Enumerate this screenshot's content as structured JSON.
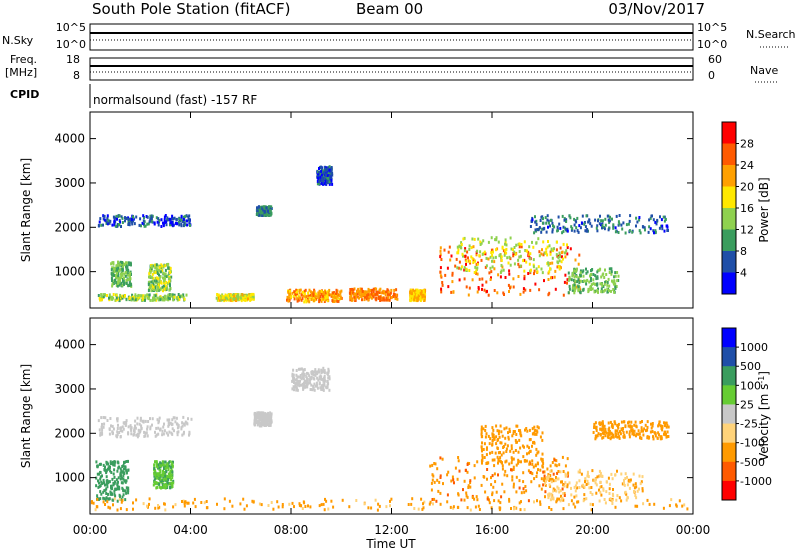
{
  "header": {
    "station": "South Pole Station (fitACF)",
    "beam": "Beam 00",
    "date": "03/Nov/2017"
  },
  "sky_panel": {
    "left_label": "N.Sky",
    "right_label": "N.Search",
    "left_ticks": [
      "10^5",
      "10^0"
    ],
    "right_ticks": [
      "10^5",
      "10^0"
    ]
  },
  "freq_panel": {
    "left_label_1": "Freq.",
    "left_label_2": "[MHz]",
    "left_ticks": [
      "18",
      "8"
    ],
    "right_label": "Nave",
    "right_ticks": [
      "60",
      "0"
    ]
  },
  "cpid": {
    "label": "CPID",
    "mode": "normalsound (fast) -157 RF"
  },
  "x_axis": {
    "label": "Time UT",
    "ticks": [
      "00:00",
      "04:00",
      "08:00",
      "12:00",
      "16:00",
      "20:00",
      "00:00"
    ]
  },
  "colors": {
    "power_scale": [
      "#0000ff",
      "#1f4fa8",
      "#3a9d5e",
      "#8fd14f",
      "#ffe800",
      "#ffa000",
      "#ff5a00",
      "#ff0000"
    ],
    "velocity_scale": [
      "#ff0000",
      "#ff5a00",
      "#ff9a00",
      "#ffd37a",
      "#c8c8c8",
      "#66cc33",
      "#3a9d5e",
      "#1f4fa8",
      "#0000ff"
    ]
  },
  "chart_data": [
    {
      "type": "heatmap",
      "name": "power",
      "xlabel": "Time UT",
      "ylabel": "Slant Range [km]",
      "ylim": [
        180,
        4600
      ],
      "xlim": [
        0,
        24
      ],
      "y_ticks": [
        1000,
        2000,
        3000,
        4000
      ],
      "colorbar": {
        "label": "Power [dB]",
        "ticks": [
          4,
          8,
          12,
          16,
          20,
          24,
          28
        ]
      },
      "regions": [
        {
          "t": [
            0.3,
            4.0
          ],
          "r": [
            2050,
            2300
          ],
          "v": 6
        },
        {
          "t": [
            0.8,
            1.6
          ],
          "r": [
            700,
            1250
          ],
          "v": 12
        },
        {
          "t": [
            2.3,
            3.2
          ],
          "r": [
            600,
            1200
          ],
          "v": 14
        },
        {
          "t": [
            0.3,
            3.8
          ],
          "r": [
            380,
            520
          ],
          "v": 14
        },
        {
          "t": [
            5.0,
            6.5
          ],
          "r": [
            380,
            520
          ],
          "v": 18
        },
        {
          "t": [
            6.6,
            7.2
          ],
          "r": [
            2300,
            2500
          ],
          "v": 8
        },
        {
          "t": [
            7.8,
            10.0
          ],
          "r": [
            350,
            620
          ],
          "v": 22
        },
        {
          "t": [
            9.0,
            9.6
          ],
          "r": [
            3000,
            3400
          ],
          "v": 6
        },
        {
          "t": [
            10.3,
            12.2
          ],
          "r": [
            380,
            650
          ],
          "v": 24
        },
        {
          "t": [
            12.7,
            13.3
          ],
          "r": [
            380,
            620
          ],
          "v": 20
        },
        {
          "t": [
            13.8,
            19.5
          ],
          "r": [
            500,
            1600
          ],
          "v": 26
        },
        {
          "t": [
            14.5,
            19.0
          ],
          "r": [
            1000,
            1800
          ],
          "v": 16
        },
        {
          "t": [
            17.5,
            23.0
          ],
          "r": [
            1900,
            2300
          ],
          "v": 7
        },
        {
          "t": [
            19.0,
            21.0
          ],
          "r": [
            550,
            1100
          ],
          "v": 12
        }
      ]
    },
    {
      "type": "heatmap",
      "name": "velocity",
      "xlabel": "Time UT",
      "ylabel": "Slant Range [km]",
      "ylim": [
        180,
        4600
      ],
      "xlim": [
        0,
        24
      ],
      "y_ticks": [
        1000,
        2000,
        3000,
        4000
      ],
      "colorbar": {
        "label": "Velocity [m s^-1]",
        "ticks": [
          1000,
          500,
          100,
          25,
          -25,
          -100,
          -500,
          -1000
        ]
      },
      "regions": [
        {
          "t": [
            0.3,
            4.0
          ],
          "r": [
            1950,
            2400
          ],
          "v": 0
        },
        {
          "t": [
            0.2,
            1.5
          ],
          "r": [
            500,
            1400
          ],
          "v": 200
        },
        {
          "t": [
            2.5,
            3.3
          ],
          "r": [
            800,
            1400
          ],
          "v": 80
        },
        {
          "t": [
            6.5,
            7.2
          ],
          "r": [
            2200,
            2500
          ],
          "v": 0
        },
        {
          "t": [
            8.0,
            9.5
          ],
          "r": [
            3000,
            3500
          ],
          "v": 0
        },
        {
          "t": [
            0.0,
            23.8
          ],
          "r": [
            300,
            560
          ],
          "v": -150
        },
        {
          "t": [
            13.5,
            19.0
          ],
          "r": [
            500,
            1500
          ],
          "v": -400
        },
        {
          "t": [
            15.5,
            18.0
          ],
          "r": [
            1300,
            2200
          ],
          "v": -300
        },
        {
          "t": [
            18.0,
            22.0
          ],
          "r": [
            500,
            1200
          ],
          "v": -80
        },
        {
          "t": [
            20.0,
            23.0
          ],
          "r": [
            1900,
            2300
          ],
          "v": -200
        }
      ]
    }
  ]
}
